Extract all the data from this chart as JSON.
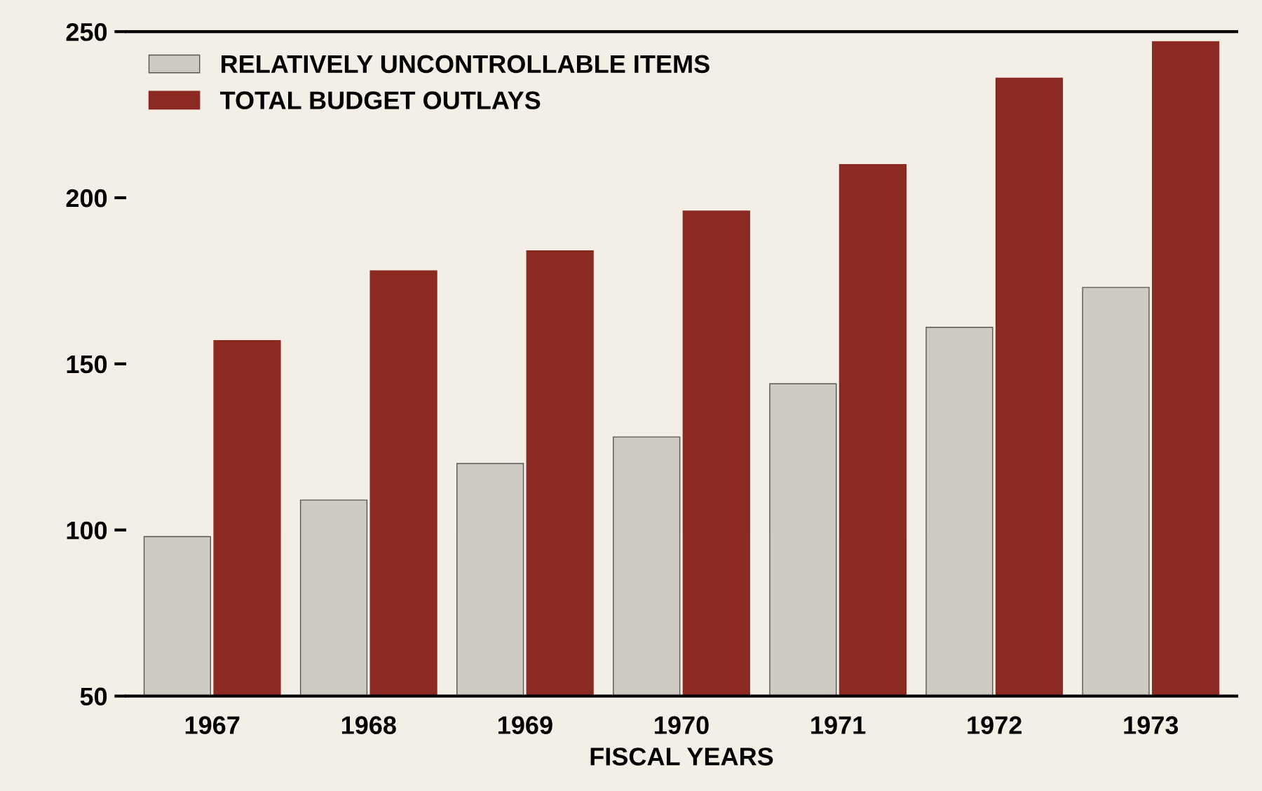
{
  "chart_data": {
    "type": "bar",
    "xlabel": "FISCAL YEARS",
    "categories": [
      "1967",
      "1968",
      "1969",
      "1970",
      "1971",
      "1972",
      "1973"
    ],
    "series": [
      {
        "name": "RELATIVELY UNCONTROLLABLE ITEMS",
        "color": "#cfcac2",
        "values": [
          98,
          109,
          120,
          128,
          144,
          161,
          173
        ]
      },
      {
        "name": "TOTAL BUDGET OUTLAYS",
        "color": "#8b2a22",
        "values": [
          157,
          178,
          184,
          196,
          210,
          236,
          247
        ]
      }
    ],
    "ylim": [
      50,
      250
    ],
    "yticks": [
      50,
      100,
      150,
      200,
      250
    ],
    "grid": false,
    "legend": "top left"
  }
}
